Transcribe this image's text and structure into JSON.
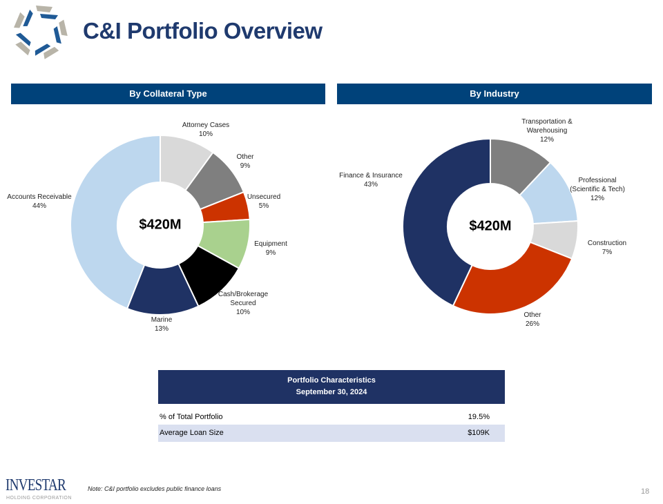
{
  "title": "C&I Portfolio Overview",
  "brand": {
    "name": "INVESTAR",
    "sub": "HOLDING CORPORATION"
  },
  "sections": {
    "left": "By Collateral Type",
    "right": "By Industry"
  },
  "chart_data": [
    {
      "type": "pie",
      "variant": "donut",
      "center_label": "$420M",
      "categories": [
        "Attorney Cases",
        "Other",
        "Unsecured",
        "Equipment",
        "Cash/Brokerage Secured",
        "Marine",
        "Accounts Receivable"
      ],
      "values": [
        10,
        9,
        5,
        9,
        10,
        13,
        44
      ],
      "labels": [
        "Attorney Cases\n10%",
        "Other\n9%",
        "Unsecured\n5%",
        "Equipment\n9%",
        "Cash/Brokerage\nSecured\n10%",
        "Marine\n13%",
        "Accounts Receivable\n44%"
      ],
      "colors": [
        "#d9d9d9",
        "#7f7f7f",
        "#cc3300",
        "#a9d18e",
        "#000000",
        "#1f3264",
        "#bdd7ee"
      ]
    },
    {
      "type": "pie",
      "variant": "donut",
      "center_label": "$420M",
      "categories": [
        "Transportation & Warehousing",
        "Professional (Scientific & Tech)",
        "Construction",
        "Other",
        "Finance & Insurance"
      ],
      "values": [
        12,
        12,
        7,
        26,
        43
      ],
      "labels": [
        "Transportation &\nWarehousing\n12%",
        "Professional\n(Scientific & Tech)\n12%",
        "Construction\n7%",
        "Other\n26%",
        "Finance & Insurance\n43%"
      ],
      "colors": [
        "#7f7f7f",
        "#bdd7ee",
        "#d9d9d9",
        "#cc3300",
        "#1f3264"
      ]
    }
  ],
  "table": {
    "header1": "Portfolio Characteristics",
    "header2": "September 30, 2024",
    "rows": [
      {
        "label": "% of Total Portfolio",
        "value": "19.5%"
      },
      {
        "label": "Average Loan Size",
        "value": "$109K"
      }
    ]
  },
  "note": "Note: C&I portfolio excludes public finance loans",
  "page_number": "18"
}
